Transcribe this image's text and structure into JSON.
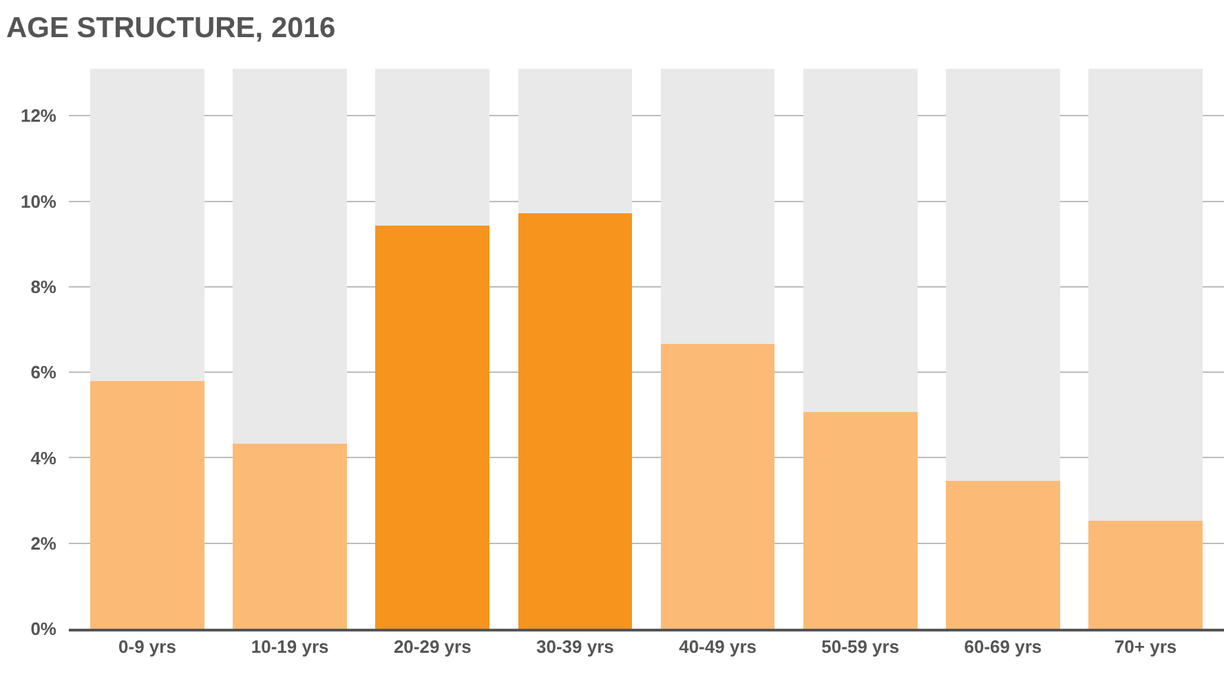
{
  "chart_data": {
    "type": "bar",
    "title": "AGE STRUCTURE, 2016",
    "categories": [
      "0-9 yrs",
      "10-19 yrs",
      "20-29 yrs",
      "30-39 yrs",
      "40-49 yrs",
      "50-59 yrs",
      "60-69 yrs",
      "70+ yrs"
    ],
    "stacked": true,
    "series": [
      {
        "colors": [
          "#fbbb77",
          "#fbbb77",
          "#f7941e",
          "#f7941e",
          "#fbbb77",
          "#fbbb77",
          "#fbbb77",
          "#fbbb77"
        ],
        "values": [
          5.8,
          4.33,
          9.43,
          9.72,
          6.67,
          5.07,
          3.46,
          2.53
        ]
      },
      {
        "color": "#e9e9e9",
        "values": [
          7.3,
          8.77,
          3.67,
          3.38,
          6.43,
          8.03,
          9.64,
          10.57
        ]
      }
    ],
    "ylim": [
      0,
      13.1
    ],
    "yticks": [
      {
        "value": 0,
        "label": "0%"
      },
      {
        "value": 2,
        "label": "2%"
      },
      {
        "value": 4,
        "label": "4%"
      },
      {
        "value": 6,
        "label": "6%"
      },
      {
        "value": 8,
        "label": "8%"
      },
      {
        "value": 10,
        "label": "10%"
      },
      {
        "value": 12,
        "label": "12%"
      }
    ],
    "grid": "y"
  }
}
